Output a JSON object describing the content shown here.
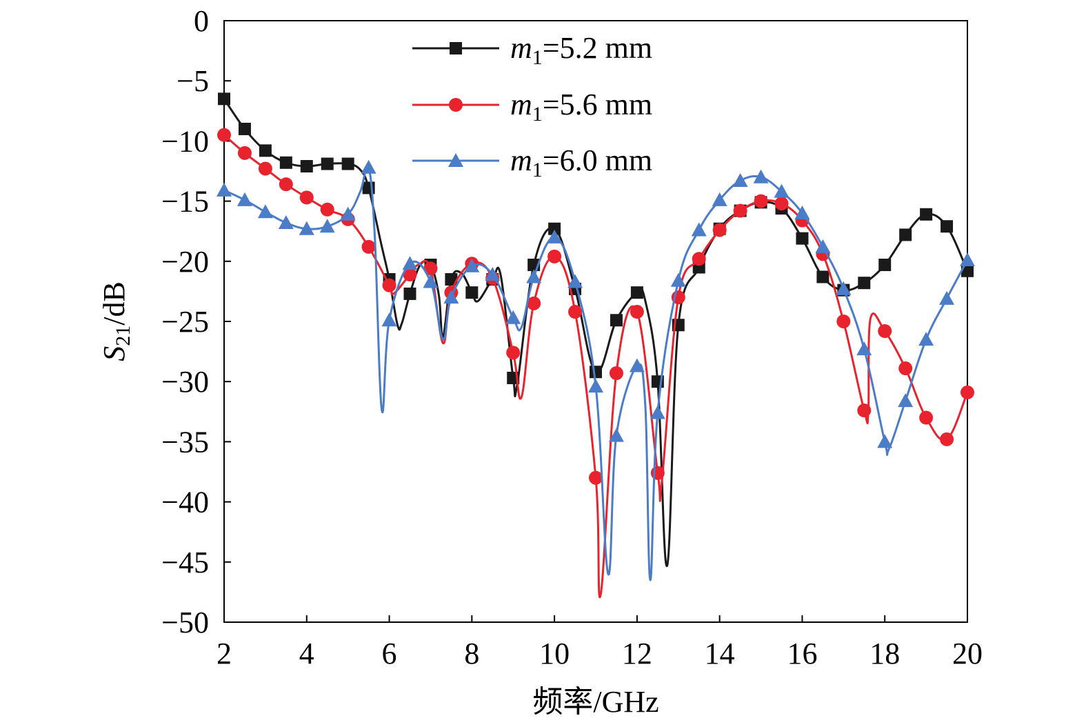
{
  "chart_data": {
    "type": "line",
    "xlabel": "频率/GHz",
    "ylabel": "S21/dB",
    "ylabel_parts": {
      "main": "S",
      "sub": "21",
      "rest": "/dB"
    },
    "xlim": [
      2,
      20
    ],
    "ylim": [
      -50,
      0
    ],
    "xticks": [
      2,
      4,
      6,
      8,
      10,
      12,
      14,
      16,
      18,
      20
    ],
    "yticks": [
      0,
      -5,
      -10,
      -15,
      -20,
      -25,
      -30,
      -35,
      -40,
      -45,
      -50
    ],
    "xtick_labels": [
      "2",
      "4",
      "6",
      "8",
      "10",
      "12",
      "14",
      "16",
      "18",
      "20"
    ],
    "ytick_labels": [
      "0",
      "−5",
      "−10",
      "−15",
      "−20",
      "−25",
      "−30",
      "−35",
      "−40",
      "−45",
      "−50"
    ],
    "grid": false,
    "legend_position": "top-center",
    "series": [
      {
        "name": "m1=5.2 mm",
        "label_parts": {
          "main": "m",
          "sub": "1",
          "rest": "=5.2 mm"
        },
        "color": "#1a1a1a",
        "marker": "square",
        "markers": [
          [
            2,
            -6.5
          ],
          [
            2.5,
            -9
          ],
          [
            3,
            -10.8
          ],
          [
            3.5,
            -11.8
          ],
          [
            4,
            -12.1
          ],
          [
            4.5,
            -11.9
          ],
          [
            5,
            -11.9
          ],
          [
            5.5,
            -13.9
          ],
          [
            6,
            -21.5
          ],
          [
            6.5,
            -22.7
          ],
          [
            7,
            -20.3
          ],
          [
            7.5,
            -21.5
          ],
          [
            8,
            -22.6
          ],
          [
            8.5,
            -21.5
          ],
          [
            9,
            -29.7
          ],
          [
            9.5,
            -20.3
          ],
          [
            10,
            -17.3
          ],
          [
            10.5,
            -22.3
          ],
          [
            11,
            -29.2
          ],
          [
            11.5,
            -24.9
          ],
          [
            12,
            -22.6
          ],
          [
            12.5,
            -30
          ],
          [
            13,
            -25.3
          ],
          [
            13.5,
            -20.5
          ],
          [
            14,
            -17.3
          ],
          [
            14.5,
            -15.8
          ],
          [
            15,
            -15.1
          ],
          [
            15.5,
            -15.6
          ],
          [
            16,
            -18.1
          ],
          [
            16.5,
            -21.3
          ],
          [
            17,
            -22.4
          ],
          [
            17.5,
            -21.8
          ],
          [
            18,
            -20.3
          ],
          [
            18.5,
            -17.8
          ],
          [
            19,
            -16.1
          ],
          [
            19.5,
            -17.1
          ],
          [
            20,
            -20.8
          ]
        ],
        "curve": [
          [
            2,
            -6.5
          ],
          [
            2.5,
            -9
          ],
          [
            3,
            -10.8
          ],
          [
            3.5,
            -11.8
          ],
          [
            4,
            -12.1
          ],
          [
            4.5,
            -11.9
          ],
          [
            5,
            -11.9
          ],
          [
            5.3,
            -12.4
          ],
          [
            5.5,
            -13.9
          ],
          [
            5.8,
            -18.5
          ],
          [
            6,
            -21.5
          ],
          [
            6.2,
            -25.3
          ],
          [
            6.3,
            -25.2
          ],
          [
            6.5,
            -22.7
          ],
          [
            6.75,
            -20.3
          ],
          [
            7,
            -20.3
          ],
          [
            7.2,
            -22.8
          ],
          [
            7.3,
            -26.3
          ],
          [
            7.5,
            -21.5
          ],
          [
            7.75,
            -21
          ],
          [
            8,
            -22.6
          ],
          [
            8.15,
            -23.3
          ],
          [
            8.5,
            -21.5
          ],
          [
            8.7,
            -21.2
          ],
          [
            9,
            -29.7
          ],
          [
            9.1,
            -30.2
          ],
          [
            9.5,
            -20.3
          ],
          [
            10,
            -17.3
          ],
          [
            10.5,
            -22.3
          ],
          [
            11,
            -29.2
          ],
          [
            11.5,
            -24.9
          ],
          [
            12,
            -22.6
          ],
          [
            12.2,
            -23.3
          ],
          [
            12.5,
            -30
          ],
          [
            12.73,
            -45.3
          ],
          [
            13,
            -25.3
          ],
          [
            13.5,
            -20.5
          ],
          [
            14,
            -17.3
          ],
          [
            14.5,
            -15.8
          ],
          [
            15,
            -15.1
          ],
          [
            15.5,
            -15.6
          ],
          [
            16,
            -18.1
          ],
          [
            16.5,
            -21.3
          ],
          [
            17,
            -22.4
          ],
          [
            17.5,
            -21.8
          ],
          [
            18,
            -20.3
          ],
          [
            18.5,
            -17.8
          ],
          [
            19,
            -16.1
          ],
          [
            19.5,
            -17.1
          ],
          [
            20,
            -20.8
          ]
        ]
      },
      {
        "name": "m1=5.6 mm",
        "label_parts": {
          "main": "m",
          "sub": "1",
          "rest": "=5.6 mm"
        },
        "color": "#e8232d",
        "marker": "circle",
        "markers": [
          [
            2,
            -9.5
          ],
          [
            2.5,
            -11
          ],
          [
            3,
            -12.3
          ],
          [
            3.5,
            -13.6
          ],
          [
            4,
            -14.7
          ],
          [
            4.5,
            -15.7
          ],
          [
            5,
            -16.5
          ],
          [
            5.5,
            -18.8
          ],
          [
            6,
            -22
          ],
          [
            6.5,
            -21.1
          ],
          [
            7,
            -20.6
          ],
          [
            7.5,
            -22.6
          ],
          [
            8,
            -20.2
          ],
          [
            8.5,
            -21.4
          ],
          [
            9,
            -27.6
          ],
          [
            9.5,
            -23.5
          ],
          [
            10,
            -19.6
          ],
          [
            10.5,
            -24.2
          ],
          [
            11,
            -38
          ],
          [
            11.5,
            -29.3
          ],
          [
            12,
            -24.2
          ],
          [
            12.5,
            -37.6
          ],
          [
            13,
            -23
          ],
          [
            13.5,
            -19.8
          ],
          [
            14,
            -17.4
          ],
          [
            14.5,
            -15.8
          ],
          [
            15,
            -15
          ],
          [
            15.5,
            -15.2
          ],
          [
            16,
            -16.6
          ],
          [
            16.5,
            -19.4
          ],
          [
            17,
            -25
          ],
          [
            17.5,
            -32.4
          ],
          [
            18,
            -25.8
          ],
          [
            18.5,
            -28.9
          ],
          [
            19,
            -33
          ],
          [
            19.5,
            -34.8
          ],
          [
            20,
            -30.9
          ]
        ],
        "curve": [
          [
            2,
            -9.5
          ],
          [
            2.5,
            -11
          ],
          [
            3,
            -12.3
          ],
          [
            3.5,
            -13.6
          ],
          [
            4,
            -14.7
          ],
          [
            4.5,
            -15.7
          ],
          [
            5,
            -16.5
          ],
          [
            5.5,
            -18.8
          ],
          [
            6,
            -22
          ],
          [
            6.1,
            -22.7
          ],
          [
            6.5,
            -21.1
          ],
          [
            6.7,
            -20.3
          ],
          [
            7,
            -20.6
          ],
          [
            7.3,
            -26.8
          ],
          [
            7.5,
            -22.6
          ],
          [
            8,
            -20.2
          ],
          [
            8.5,
            -21.4
          ],
          [
            9,
            -27.6
          ],
          [
            9.2,
            -31.3
          ],
          [
            9.5,
            -23.5
          ],
          [
            10,
            -19.6
          ],
          [
            10.5,
            -24.2
          ],
          [
            11,
            -38
          ],
          [
            11.12,
            -47.7
          ],
          [
            11.5,
            -29.3
          ],
          [
            12,
            -24.2
          ],
          [
            12.5,
            -37.6
          ],
          [
            12.6,
            -38.3
          ],
          [
            13,
            -23
          ],
          [
            13.5,
            -19.8
          ],
          [
            14,
            -17.4
          ],
          [
            14.5,
            -15.8
          ],
          [
            15,
            -15
          ],
          [
            15.5,
            -15.2
          ],
          [
            16,
            -16.6
          ],
          [
            16.5,
            -19.4
          ],
          [
            17,
            -25
          ],
          [
            17.5,
            -32.4
          ],
          [
            17.6,
            -32.5
          ],
          [
            17.65,
            -24.8
          ],
          [
            18,
            -25.8
          ],
          [
            18.5,
            -28.9
          ],
          [
            19,
            -33
          ],
          [
            19.5,
            -34.8
          ],
          [
            20,
            -30.9
          ]
        ]
      },
      {
        "name": "m1=6.0 mm",
        "label_parts": {
          "main": "m",
          "sub": "1",
          "rest": "=6.0 mm"
        },
        "color": "#4a7cc7",
        "marker": "triangle",
        "markers": [
          [
            2,
            -14.1
          ],
          [
            2.5,
            -14.9
          ],
          [
            3,
            -15.9
          ],
          [
            3.5,
            -16.8
          ],
          [
            4,
            -17.3
          ],
          [
            4.5,
            -17.1
          ],
          [
            5,
            -16.1
          ],
          [
            5.5,
            -12.2
          ],
          [
            6,
            -24.9
          ],
          [
            6.5,
            -20.2
          ],
          [
            7,
            -21.7
          ],
          [
            7.5,
            -23
          ],
          [
            8,
            -20.4
          ],
          [
            8.5,
            -21.1
          ],
          [
            9,
            -24.7
          ],
          [
            9.5,
            -21.3
          ],
          [
            10,
            -18
          ],
          [
            10.5,
            -21.7
          ],
          [
            11,
            -30.4
          ],
          [
            11.5,
            -34.5
          ],
          [
            12,
            -28.7
          ],
          [
            12.5,
            -32.6
          ],
          [
            13,
            -21.6
          ],
          [
            13.5,
            -17.4
          ],
          [
            14,
            -14.9
          ],
          [
            14.5,
            -13.3
          ],
          [
            15,
            -13
          ],
          [
            15.5,
            -14.2
          ],
          [
            16,
            -16
          ],
          [
            16.5,
            -18.8
          ],
          [
            17,
            -22.3
          ],
          [
            17.5,
            -27.3
          ],
          [
            18,
            -35
          ],
          [
            18.5,
            -31.6
          ],
          [
            19,
            -26.5
          ],
          [
            19.5,
            -23.1
          ],
          [
            20,
            -19.9
          ]
        ],
        "curve": [
          [
            2,
            -14.1
          ],
          [
            2.5,
            -14.9
          ],
          [
            3,
            -15.9
          ],
          [
            3.5,
            -16.8
          ],
          [
            4,
            -17.3
          ],
          [
            4.5,
            -17.1
          ],
          [
            5,
            -16.1
          ],
          [
            5.3,
            -14.2
          ],
          [
            5.5,
            -12.2
          ],
          [
            5.65,
            -18
          ],
          [
            5.82,
            -32.4
          ],
          [
            6,
            -24.9
          ],
          [
            6.5,
            -20.2
          ],
          [
            7,
            -21.7
          ],
          [
            7.3,
            -26.5
          ],
          [
            7.5,
            -23
          ],
          [
            8,
            -20.4
          ],
          [
            8.5,
            -21.1
          ],
          [
            9,
            -24.7
          ],
          [
            9.2,
            -25.5
          ],
          [
            9.5,
            -21.3
          ],
          [
            10,
            -18
          ],
          [
            10.5,
            -21.7
          ],
          [
            11,
            -30.4
          ],
          [
            11.3,
            -46
          ],
          [
            11.5,
            -34.5
          ],
          [
            12,
            -28.7
          ],
          [
            12.2,
            -32
          ],
          [
            12.32,
            -46.5
          ],
          [
            12.5,
            -32.6
          ],
          [
            13,
            -21.6
          ],
          [
            13.5,
            -17.4
          ],
          [
            14,
            -14.9
          ],
          [
            14.5,
            -13.3
          ],
          [
            15,
            -13
          ],
          [
            15.5,
            -14.2
          ],
          [
            16,
            -16
          ],
          [
            16.5,
            -18.8
          ],
          [
            17,
            -22.3
          ],
          [
            17.5,
            -27.3
          ],
          [
            18,
            -35
          ],
          [
            18.1,
            -35.6
          ],
          [
            18.5,
            -31.6
          ],
          [
            19,
            -26.5
          ],
          [
            19.5,
            -23.1
          ],
          [
            20,
            -19.9
          ]
        ]
      }
    ]
  }
}
